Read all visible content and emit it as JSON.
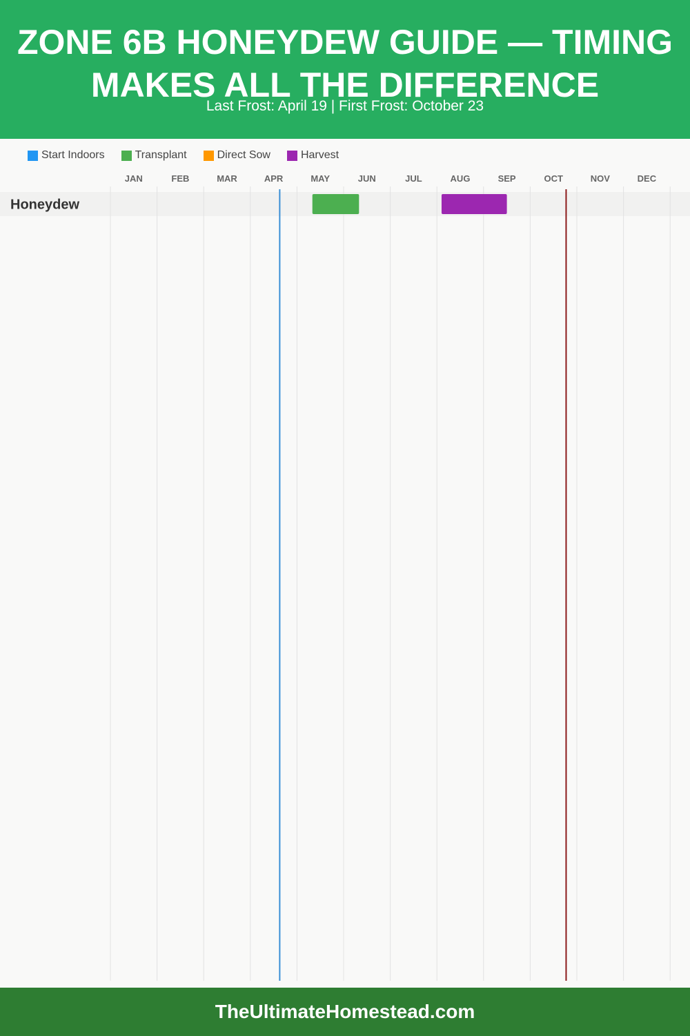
{
  "header": {
    "title": "ZONE 6B HONEYDEW GUIDE — TIMING MAKES ALL THE DIFFERENCE",
    "subtitle": "Last Frost: April 19 | First Frost: October 23"
  },
  "legend": [
    {
      "label": "Start Indoors",
      "color": "#2196f3"
    },
    {
      "label": "Transplant",
      "color": "#4caf50"
    },
    {
      "label": "Direct Sow",
      "color": "#ff9800"
    },
    {
      "label": "Harvest",
      "color": "#9c27b0"
    }
  ],
  "chart_data": {
    "type": "gantt",
    "months": [
      "JAN",
      "FEB",
      "MAR",
      "APR",
      "MAY",
      "JUN",
      "JUL",
      "AUG",
      "SEP",
      "OCT",
      "NOV",
      "DEC"
    ],
    "rows": [
      {
        "name": "Honeydew",
        "periods": [
          {
            "activity": "Transplant",
            "start_month": 5.33,
            "end_month": 6.33
          },
          {
            "activity": "Harvest",
            "start_month": 8.1,
            "end_month": 9.5
          }
        ]
      }
    ],
    "markers": [
      {
        "label": "Last Frost",
        "month": 4.63,
        "color": "#3a8fd6"
      },
      {
        "label": "First Frost",
        "month": 10.77,
        "color": "#8b1a1a"
      }
    ],
    "grid": true
  },
  "footer": {
    "site": "TheUltimateHomestead.com"
  }
}
